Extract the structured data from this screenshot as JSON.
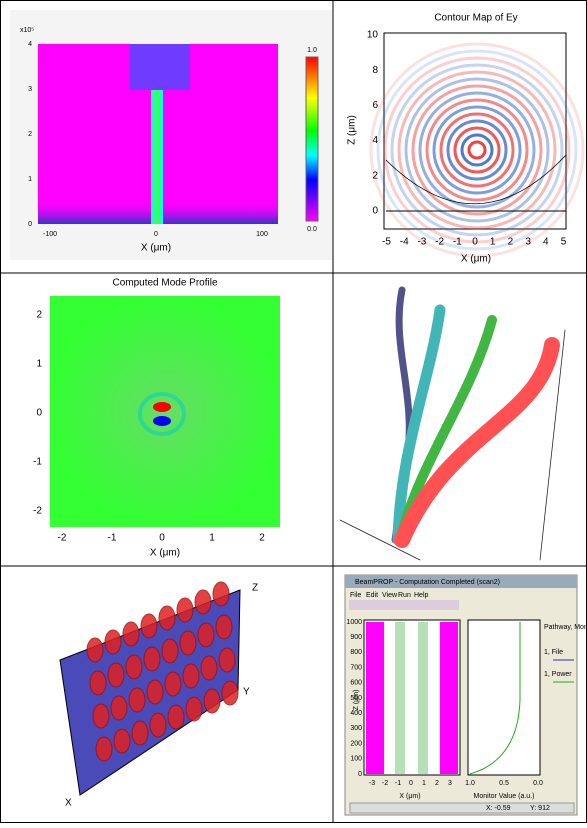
{
  "heatmap": {
    "yexp": "x10⁵",
    "yticks": [
      0,
      1,
      2,
      3,
      4
    ],
    "xticks": [
      -100,
      0,
      100
    ],
    "xlabel": "X (μm)",
    "cbar": [
      "1.0",
      "0.0"
    ]
  },
  "contour": {
    "title": "Contour Map of Ey",
    "xticks": [
      -5,
      -4,
      -3,
      -2,
      -1,
      0,
      1,
      2,
      3,
      4,
      5
    ],
    "yticks": [
      0,
      2,
      4,
      6,
      8,
      10
    ],
    "xlabel": "X (μm)",
    "ylabel": "Z (μm)"
  },
  "mode": {
    "title": "Computed Mode Profile",
    "xticks": [
      -2,
      -1,
      0,
      1,
      2
    ],
    "yticks": [
      -2,
      -1,
      0,
      1,
      2
    ],
    "xlabel": "X (μm)"
  },
  "box": {
    "axes": [
      "Z",
      "Y",
      "X"
    ]
  },
  "window": {
    "title": "BeamPROP - Computation Completed (scan2)",
    "menu": [
      "File",
      "Edit",
      "View",
      "Run",
      "Help"
    ],
    "yticks": [
      0,
      100,
      200,
      300,
      400,
      500,
      600,
      700,
      800,
      900,
      1000
    ],
    "xticks": [
      -3,
      -2,
      -1,
      0,
      1,
      2,
      3
    ],
    "xlabel": "X (μm)",
    "ylabel": "Z (μm)",
    "mticks": [
      "1.0",
      "0.5",
      "0.0"
    ],
    "mlabel": "Monitor Value (a.u.)",
    "legend": [
      "Pathway, Monitor:",
      "1, File",
      "1, Power"
    ],
    "status": [
      "X: -0.59",
      "Y: 912"
    ]
  }
}
